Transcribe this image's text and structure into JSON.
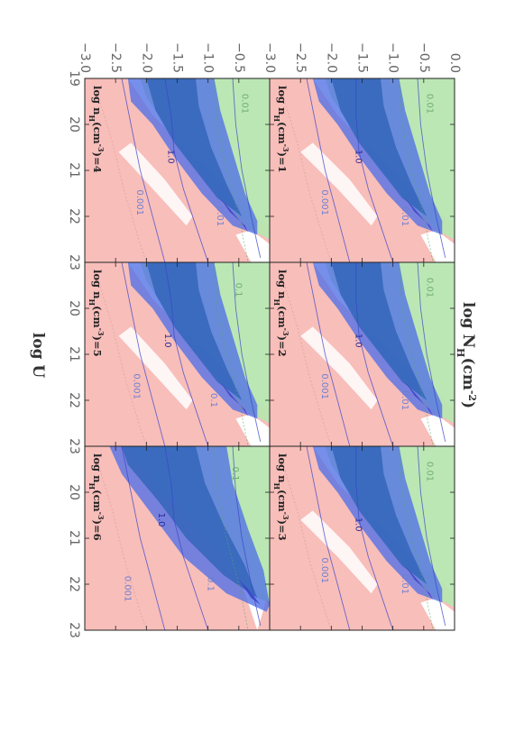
{
  "chart_data": {
    "type": "contour",
    "orientation": "rotated-90-clockwise",
    "xlabel": "log  N_H(cm^-2)",
    "xlabel_parts": {
      "base": "log  N",
      "sub": "H",
      "unit_open": "(cm",
      "sup": "-2",
      "unit_close": ")"
    },
    "ylabel": "log U",
    "xlim": [
      19,
      23
    ],
    "ylim": [
      -3.0,
      0.0
    ],
    "x_ticks": [
      19,
      20,
      21,
      22,
      23
    ],
    "x_tick_labels": [
      "19",
      "20",
      "21",
      "22",
      "23"
    ],
    "y_ticks": [
      0.0,
      -0.5,
      -1.0,
      -1.5,
      -2.0,
      -2.5,
      -3.0
    ],
    "y_tick_labels": [
      "0.0",
      "−0.5",
      "−1.0",
      "−1.5",
      "−2.0",
      "−2.5",
      "−3.0"
    ],
    "colors": {
      "pink": "#f7b8b4",
      "green": "#b7e6b0",
      "blue_mid": "#4f6fe6",
      "blue_dark": "#2f63b8",
      "blue_deep": "#3b3fc4",
      "contour_blue": "#3c46c8",
      "contour_green": "#5ca65c",
      "contour_pink": "#d99c9c"
    },
    "panels": [
      {
        "id": 1,
        "label_pre": "log  n",
        "label_sub": "H",
        "label_mid": "(cm",
        "label_sup": "-3",
        "label_post": ")=1",
        "contour_labels": [
          {
            "text": "0.01",
            "x": 22.0,
            "y": -0.85,
            "color": "#6e7fd2"
          },
          {
            "text": "0.001",
            "x": 21.7,
            "y": -2.15,
            "color": "#6e7fd2"
          },
          {
            "text": "0.01",
            "x": 19.55,
            "y": -0.45,
            "color": "#6fae6f"
          },
          {
            "text": "1.0",
            "x": 20.7,
            "y": -1.6,
            "color": "#2b2b9a"
          }
        ]
      },
      {
        "id": 2,
        "label_pre": "log  n",
        "label_sub": "H",
        "label_mid": "(cm",
        "label_sup": "-3",
        "label_post": ")=2",
        "contour_labels": [
          {
            "text": "0.01",
            "x": 22.0,
            "y": -0.85,
            "color": "#6e7fd2"
          },
          {
            "text": "0.001",
            "x": 21.7,
            "y": -2.15,
            "color": "#6e7fd2"
          },
          {
            "text": "0.01",
            "x": 19.55,
            "y": -0.45,
            "color": "#6fae6f"
          },
          {
            "text": "1.0",
            "x": 20.7,
            "y": -1.6,
            "color": "#2b2b9a"
          }
        ]
      },
      {
        "id": 3,
        "label_pre": "log  n",
        "label_sub": "H",
        "label_mid": "(cm",
        "label_sup": "-3",
        "label_post": ")=3",
        "contour_labels": [
          {
            "text": "0.01",
            "x": 22.0,
            "y": -0.85,
            "color": "#6e7fd2"
          },
          {
            "text": "0.001",
            "x": 21.7,
            "y": -2.15,
            "color": "#6e7fd2"
          },
          {
            "text": "0.01",
            "x": 19.55,
            "y": -0.45,
            "color": "#6fae6f"
          },
          {
            "text": "1.0",
            "x": 20.7,
            "y": -1.6,
            "color": "#2b2b9a"
          }
        ]
      },
      {
        "id": 4,
        "label_pre": "log  n",
        "label_sub": "H",
        "label_mid": "(cm",
        "label_sup": "-3",
        "label_post": ")=4",
        "contour_labels": [
          {
            "text": "0.01",
            "x": 22.0,
            "y": -0.85,
            "color": "#6e7fd2"
          },
          {
            "text": "0.001",
            "x": 21.7,
            "y": -2.15,
            "color": "#6e7fd2"
          },
          {
            "text": "0.01",
            "x": 19.55,
            "y": -0.45,
            "color": "#6fae6f"
          },
          {
            "text": "1.0",
            "x": 20.7,
            "y": -1.65,
            "color": "#2b2b9a"
          }
        ]
      },
      {
        "id": 5,
        "label_pre": "log  n",
        "label_sub": "H",
        "label_mid": "(cm",
        "label_sup": "-3",
        "label_post": ")=5",
        "contour_labels": [
          {
            "text": "0.1",
            "x": 22.0,
            "y": -0.95,
            "color": "#6e7fd2"
          },
          {
            "text": "0.001",
            "x": 21.7,
            "y": -2.2,
            "color": "#6e7fd2"
          },
          {
            "text": "0.1",
            "x": 19.6,
            "y": -0.55,
            "color": "#6fae6f"
          },
          {
            "text": "1.0",
            "x": 20.7,
            "y": -1.7,
            "color": "#2b2b9a"
          }
        ]
      },
      {
        "id": 6,
        "label_pre": "log  n",
        "label_sub": "H",
        "label_mid": "(cm",
        "label_sup": "-3",
        "label_post": ")=6",
        "contour_labels": [
          {
            "text": "0.1",
            "x": 22.0,
            "y": -1.0,
            "color": "#6e7fd2"
          },
          {
            "text": "0.001",
            "x": 22.1,
            "y": -2.35,
            "color": "#6e7fd2"
          },
          {
            "text": "0.1",
            "x": 19.6,
            "y": -0.6,
            "color": "#6fae6f"
          },
          {
            "text": "1.0",
            "x": 20.6,
            "y": -1.8,
            "color": "#2b2b9a"
          }
        ]
      }
    ]
  }
}
